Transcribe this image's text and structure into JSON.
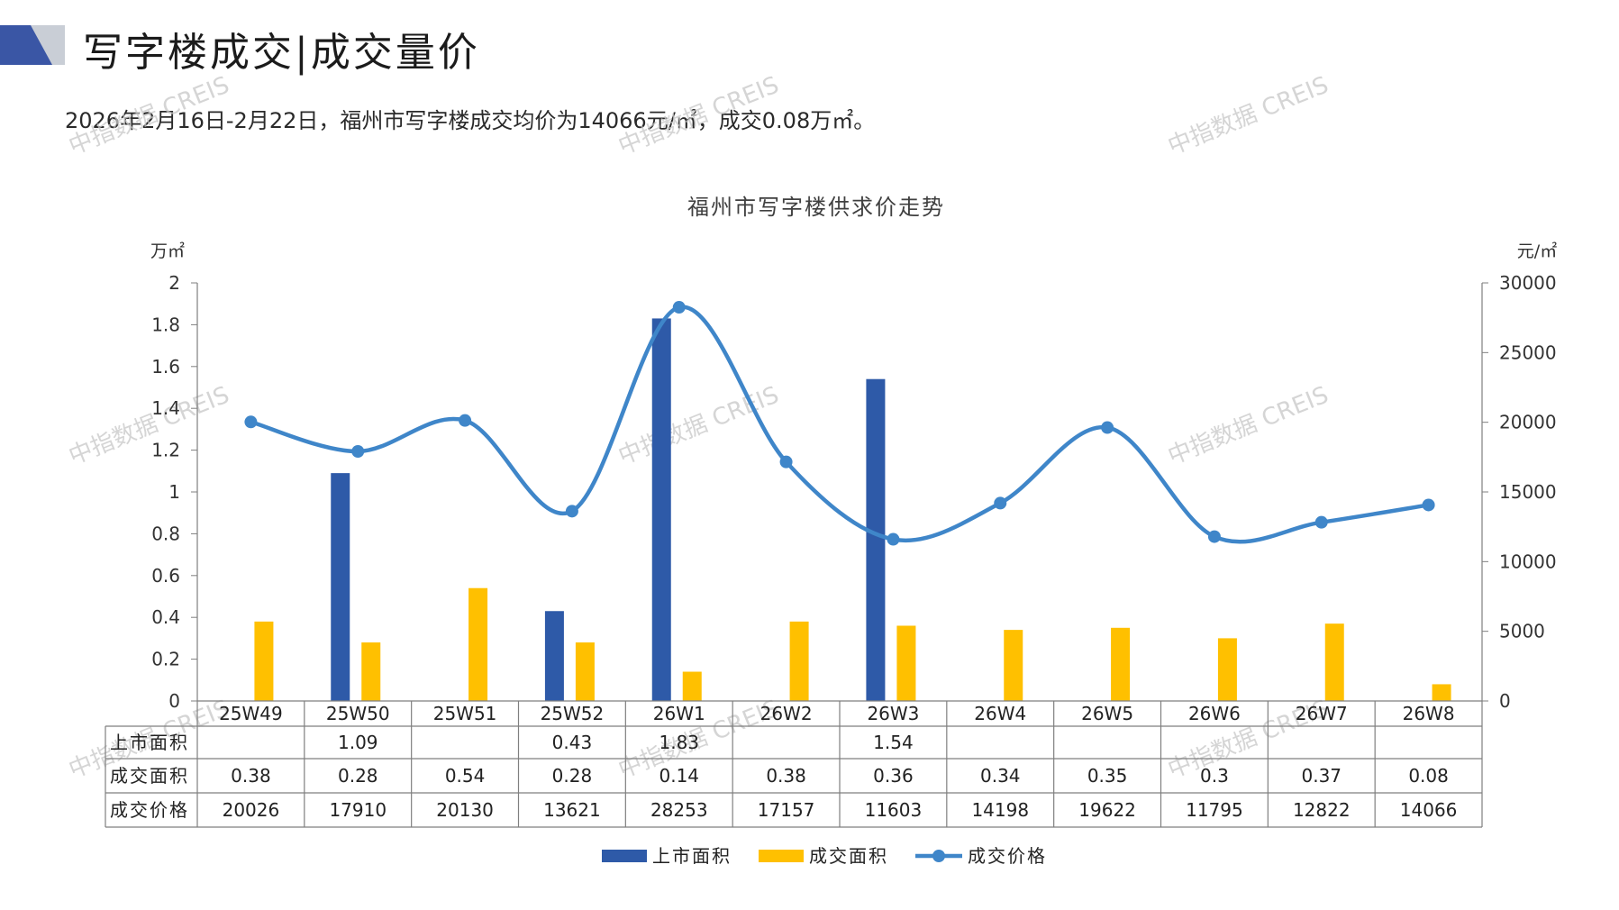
{
  "page": {
    "title": "写字楼成交|成交量价",
    "summary": "2026年2月16日-2月22日，福州市写字楼成交均价为14066元/㎡，成交0.08万㎡。",
    "watermark": "中指数据 CREIS"
  },
  "colors": {
    "listed_bar": "#2e5aa8",
    "deal_bar": "#ffc000",
    "price_line": "#3f86c9",
    "deco_dark": "#3a56a5",
    "deco_grey": "#c9ced6"
  },
  "chart_data": {
    "type": "bar",
    "title": "福州市写字楼供求价走势",
    "left_unit": "万㎡",
    "right_unit": "元/㎡",
    "categories": [
      "25W49",
      "25W50",
      "25W51",
      "25W52",
      "26W1",
      "26W2",
      "26W3",
      "26W4",
      "26W5",
      "26W6",
      "26W7",
      "26W8"
    ],
    "left_axis": {
      "min": 0,
      "max": 2,
      "ticks": [
        "0",
        "0.2",
        "0.4",
        "0.6",
        "0.8",
        "1",
        "1.2",
        "1.4",
        "1.6",
        "1.8",
        "2"
      ]
    },
    "right_axis": {
      "min": 0,
      "max": 30000,
      "ticks": [
        "0",
        "5000",
        "10000",
        "15000",
        "20000",
        "25000",
        "30000"
      ]
    },
    "series": [
      {
        "name": "上市面积",
        "type": "bar",
        "axis": "left",
        "values": [
          null,
          1.09,
          null,
          0.43,
          1.83,
          null,
          1.54,
          null,
          null,
          null,
          null,
          null
        ],
        "labels": [
          "",
          "1.09",
          "",
          "0.43",
          "1.83",
          "",
          "1.54",
          "",
          "",
          "",
          "",
          ""
        ]
      },
      {
        "name": "成交面积",
        "type": "bar",
        "axis": "left",
        "values": [
          0.38,
          0.28,
          0.54,
          0.28,
          0.14,
          0.38,
          0.36,
          0.34,
          0.35,
          0.3,
          0.37,
          0.08
        ],
        "labels": [
          "0.38",
          "0.28",
          "0.54",
          "0.28",
          "0.14",
          "0.38",
          "0.36",
          "0.34",
          "0.35",
          "0.3",
          "0.37",
          "0.08"
        ]
      },
      {
        "name": "成交价格",
        "type": "line",
        "axis": "right",
        "values": [
          20026,
          17910,
          20130,
          13621,
          28253,
          17157,
          11603,
          14198,
          19622,
          11795,
          12822,
          14066
        ],
        "labels": [
          "20026",
          "17910",
          "20130",
          "13621",
          "28253",
          "17157",
          "11603",
          "14198",
          "19622",
          "11795",
          "12822",
          "14066"
        ]
      }
    ],
    "legend_position": "bottom"
  }
}
